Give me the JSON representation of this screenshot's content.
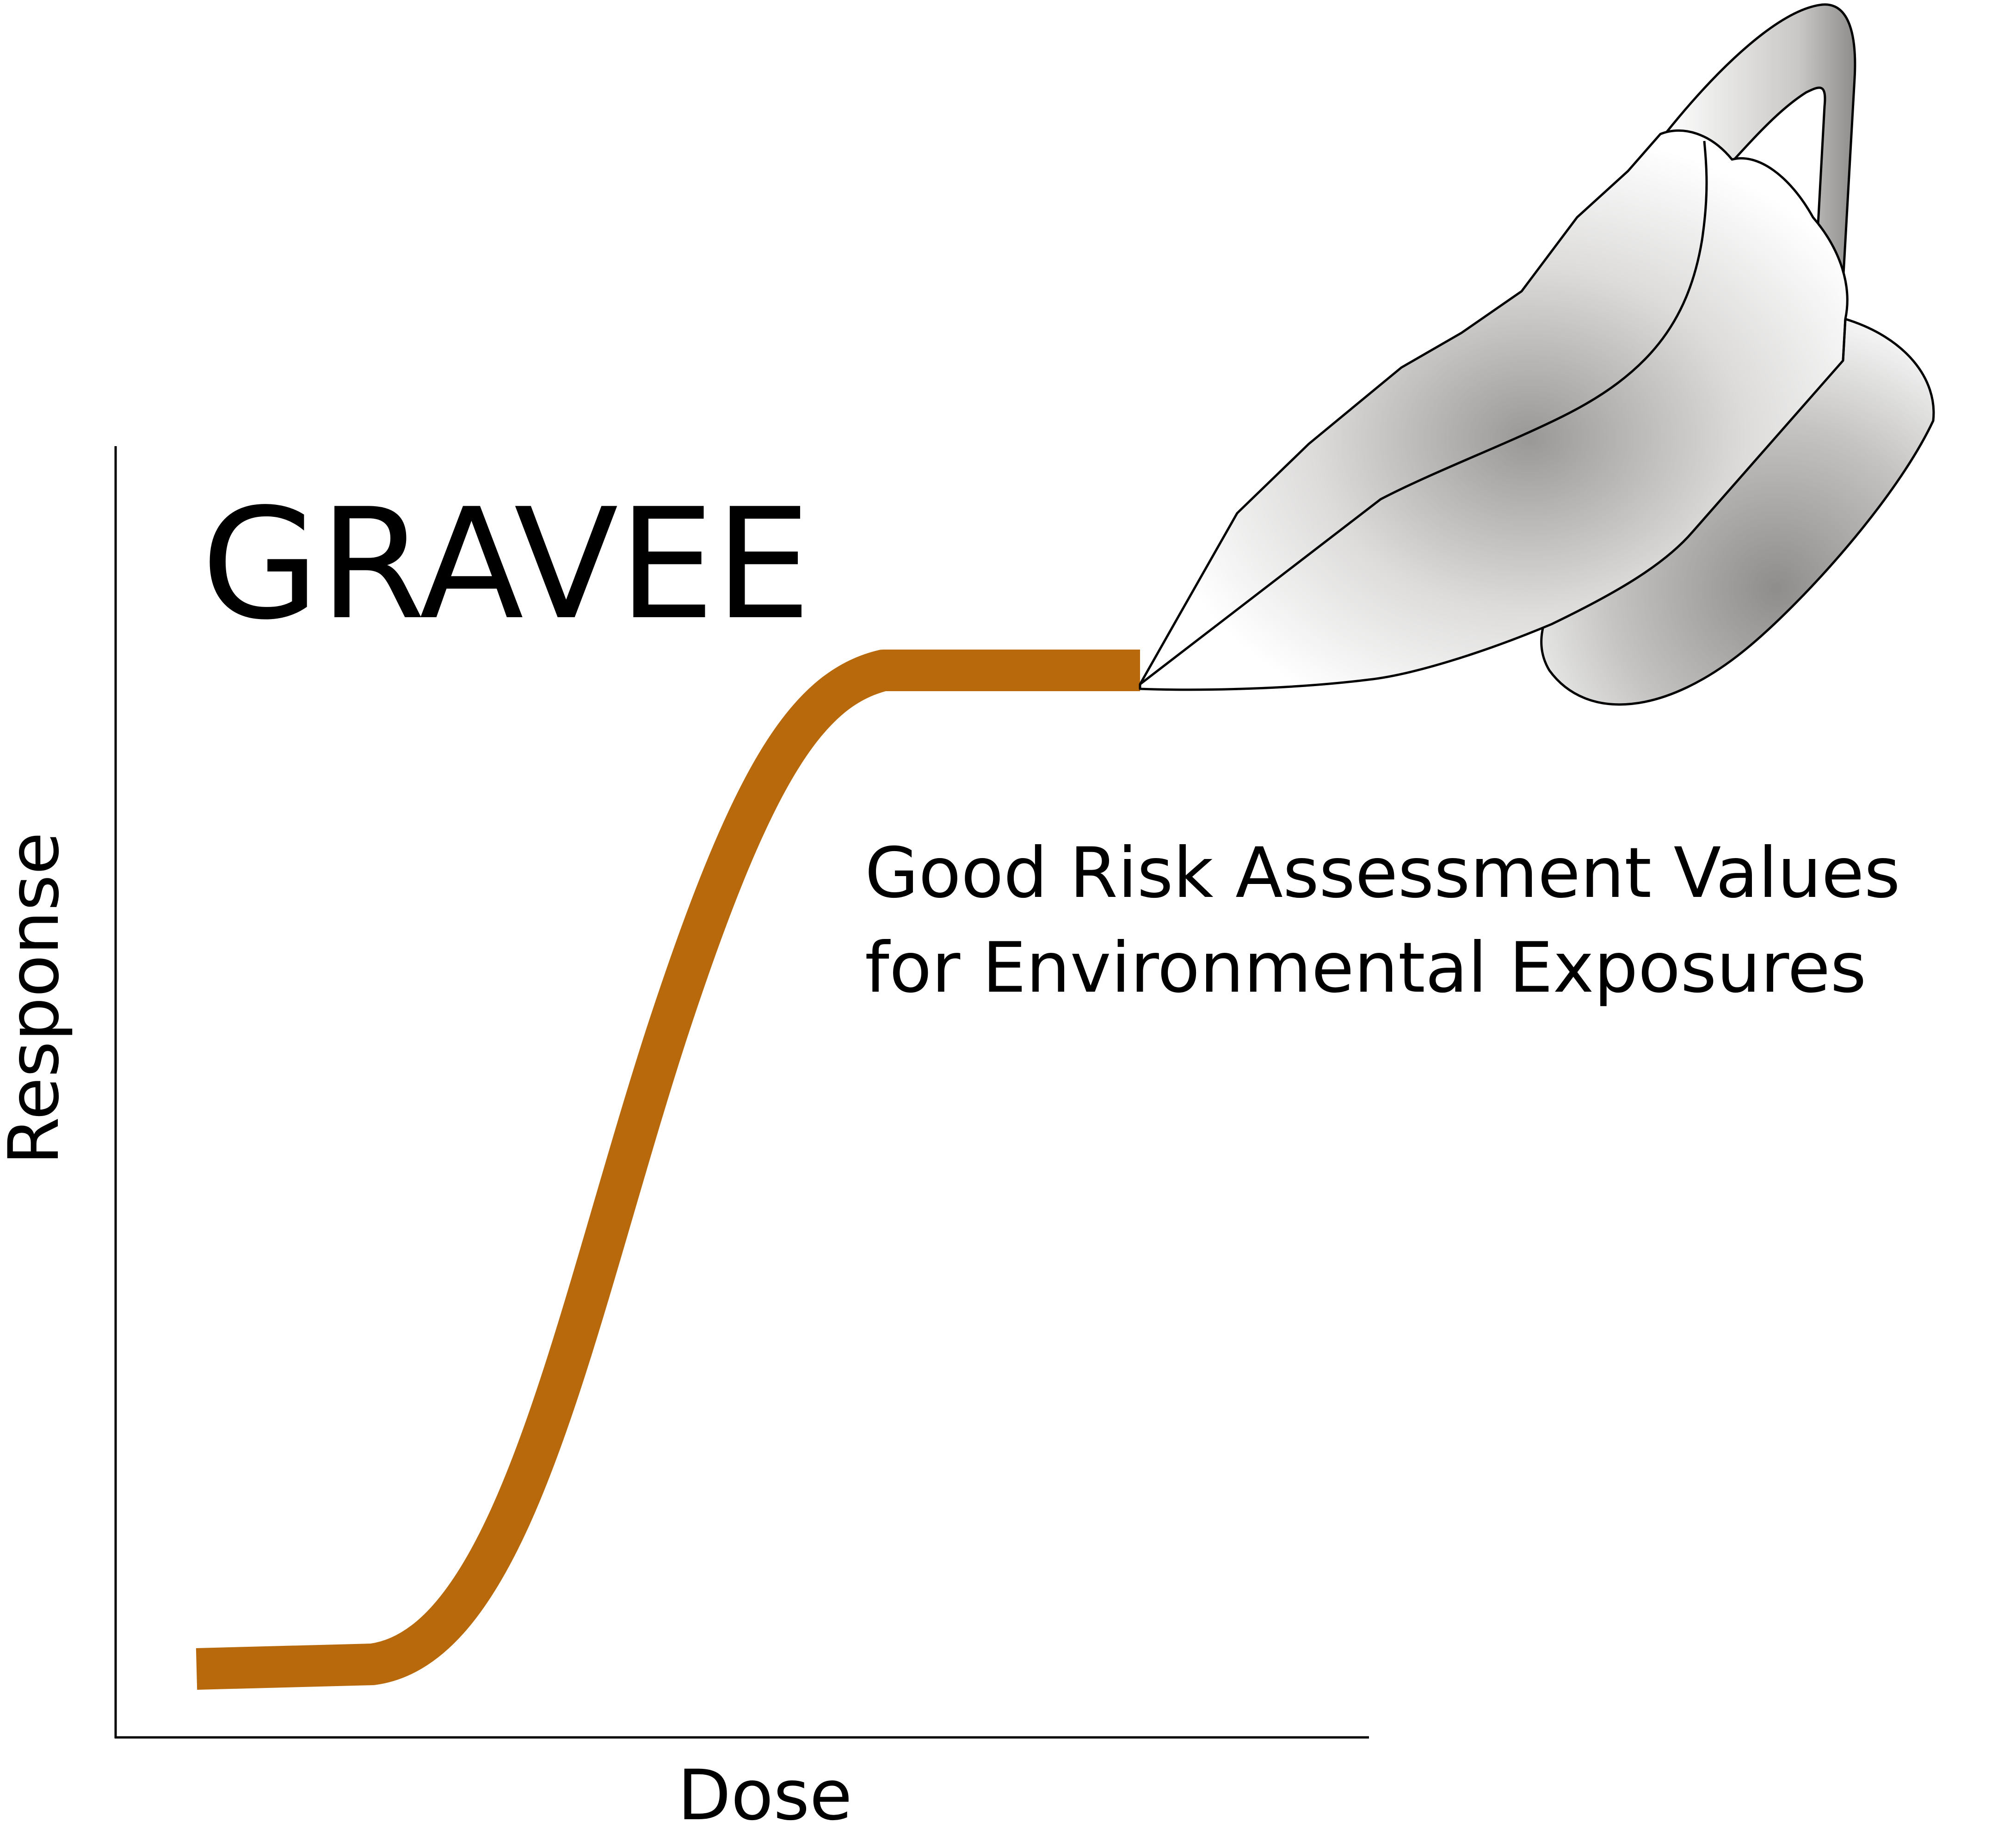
{
  "logo": {
    "wordmark": "GRAVEE",
    "tagline_line1": "Good Risk Assessment Values",
    "tagline_line2": "for Environmental Exposures",
    "x_axis_label": "Dose",
    "y_axis_label": "Response",
    "curve_shape": "sigmoid dose-response curve ending in a plateau",
    "pitcher_icon": "gravy-boat-icon"
  },
  "colors": {
    "curve": "#b8690c",
    "axis": "#000000",
    "text": "#000000",
    "pitcher_outline": "#000000",
    "pitcher_light": "#ffffff",
    "pitcher_shadow": "#9a9896"
  }
}
